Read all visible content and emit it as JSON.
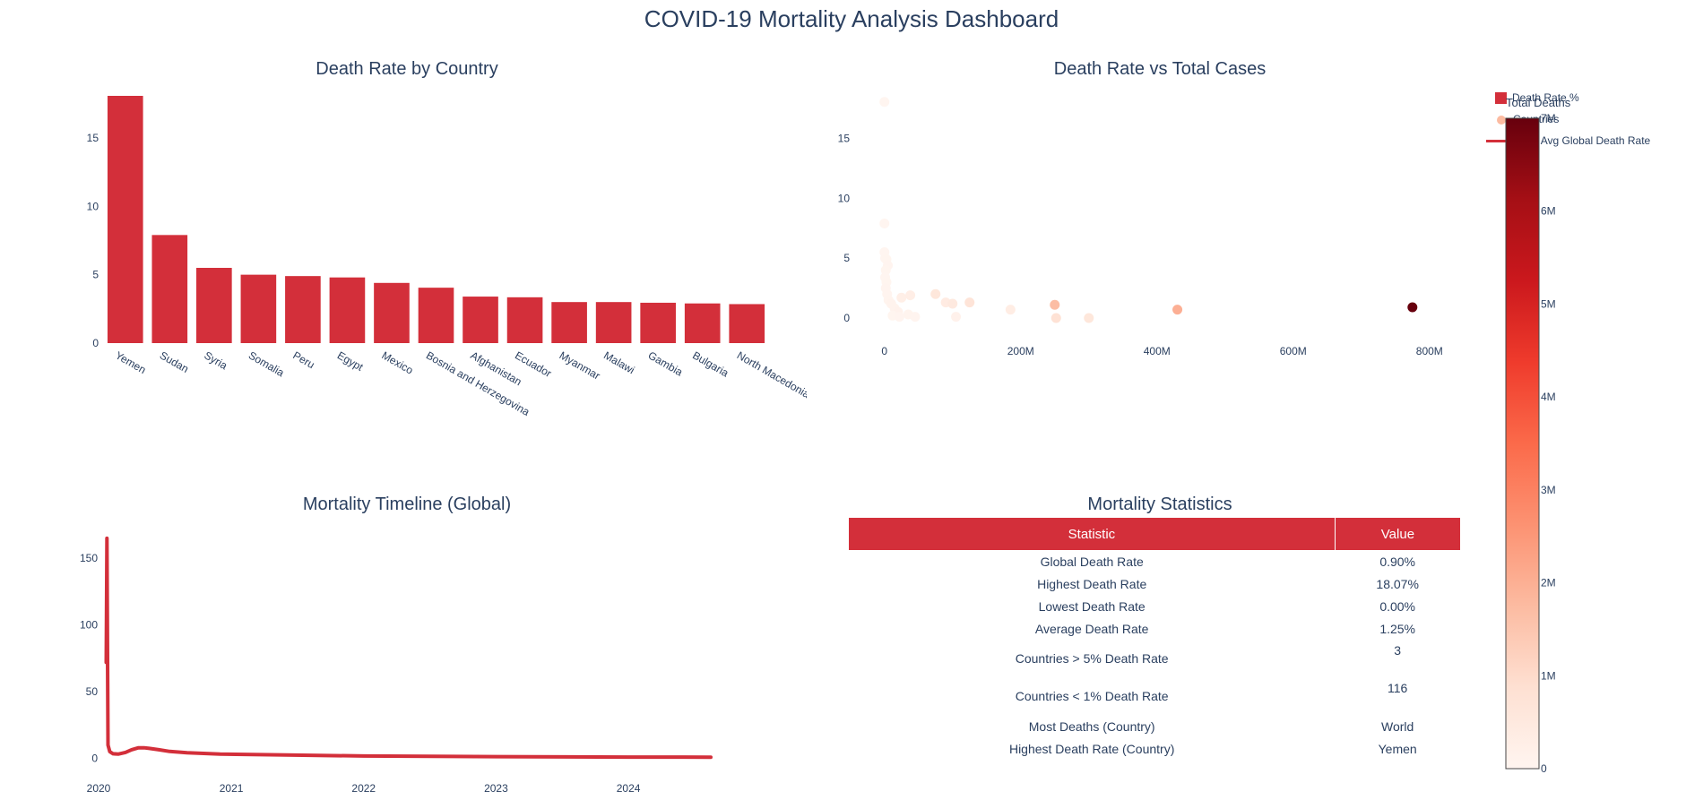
{
  "title": "COVID-19 Mortality Analysis Dashboard",
  "colors": {
    "bar": "#d32f3a",
    "line": "#d32f3a",
    "header": "#d32f3a",
    "colorscale": [
      "#fff5f0",
      "#fee0d2",
      "#fcbba1",
      "#fc9272",
      "#fb6a4a",
      "#ef3b2c",
      "#cb181d",
      "#a50f15",
      "#67000d"
    ]
  },
  "legend": {
    "items": [
      {
        "label": "Death Rate %",
        "symbol": "square"
      },
      {
        "label": "Countries",
        "symbol": "dot"
      },
      {
        "label": "7-day Avg Global Death Rate",
        "symbol": "line"
      }
    ]
  },
  "colorbar": {
    "title": "Total Deaths",
    "range": [
      0,
      7000000
    ],
    "ticks": [
      "0",
      "1M",
      "2M",
      "3M",
      "4M",
      "5M",
      "6M",
      "7M"
    ]
  },
  "chart_data": [
    {
      "type": "bar",
      "title": "Death Rate by Country",
      "categories": [
        "Yemen",
        "Sudan",
        "Syria",
        "Somalia",
        "Peru",
        "Egypt",
        "Mexico",
        "Bosnia and Herzegovina",
        "Afghanistan",
        "Ecuador",
        "Myanmar",
        "Malawi",
        "Gambia",
        "Bulgaria",
        "North Macedonia"
      ],
      "values": [
        18.07,
        7.9,
        5.5,
        5.0,
        4.9,
        4.8,
        4.4,
        4.05,
        3.4,
        3.35,
        3.0,
        3.0,
        2.95,
        2.9,
        2.85
      ],
      "ylim": [
        0,
        18.07
      ],
      "yticks": [
        0,
        5,
        10,
        15
      ],
      "series_name": "Death Rate %"
    },
    {
      "type": "scatter",
      "title": "Death Rate vs Total Cases",
      "series_name": "Countries",
      "xlim": [
        -22000000,
        820000000
      ],
      "ylim": [
        -1.5,
        18.5
      ],
      "xticks": [
        {
          "v": 0,
          "label": "0"
        },
        {
          "v": 200000000,
          "label": "200M"
        },
        {
          "v": 400000000,
          "label": "400M"
        },
        {
          "v": 600000000,
          "label": "600M"
        },
        {
          "v": 800000000,
          "label": "800M"
        }
      ],
      "yticks": [
        0,
        5,
        10,
        15
      ],
      "points": [
        {
          "x": 0,
          "y": 18.07,
          "deaths": 2100
        },
        {
          "x": 0,
          "y": 7.9,
          "deaths": 5000
        },
        {
          "x": 0,
          "y": 5.5,
          "deaths": 3200
        },
        {
          "x": 1000000,
          "y": 5.0,
          "deaths": 1400
        },
        {
          "x": 3000000,
          "y": 4.9,
          "deaths": 15000
        },
        {
          "x": 5000000,
          "y": 4.4,
          "deaths": 25000
        },
        {
          "x": 2000000,
          "y": 4.0,
          "deaths": 16000
        },
        {
          "x": 1000000,
          "y": 3.4,
          "deaths": 8000
        },
        {
          "x": 3000000,
          "y": 3.0,
          "deaths": 19000
        },
        {
          "x": 2000000,
          "y": 2.5,
          "deaths": 25000
        },
        {
          "x": 4000000,
          "y": 2.0,
          "deaths": 35000
        },
        {
          "x": 6000000,
          "y": 1.5,
          "deaths": 60000
        },
        {
          "x": 10000000,
          "y": 1.2,
          "deaths": 80000
        },
        {
          "x": 15000000,
          "y": 0.8,
          "deaths": 100000
        },
        {
          "x": 20000000,
          "y": 0.5,
          "deaths": 120000
        },
        {
          "x": 12000000,
          "y": 0.2,
          "deaths": 20000
        },
        {
          "x": 25000000,
          "y": 1.7,
          "deaths": 250000
        },
        {
          "x": 35000000,
          "y": 0.3,
          "deaths": 60000
        },
        {
          "x": 38000000,
          "y": 1.9,
          "deaths": 300000
        },
        {
          "x": 45000000,
          "y": 0.1,
          "deaths": 40000
        },
        {
          "x": 22000000,
          "y": 0.1,
          "deaths": 30000
        },
        {
          "x": 75000000,
          "y": 2.0,
          "deaths": 600000
        },
        {
          "x": 90000000,
          "y": 1.3,
          "deaths": 400000
        },
        {
          "x": 100000000,
          "y": 1.2,
          "deaths": 500000
        },
        {
          "x": 105000000,
          "y": 0.1,
          "deaths": 150000
        },
        {
          "x": 125000000,
          "y": 1.3,
          "deaths": 700000
        },
        {
          "x": 185000000,
          "y": 0.7,
          "deaths": 350000
        },
        {
          "x": 250000000,
          "y": 1.1,
          "deaths": 1700000
        },
        {
          "x": 252000000,
          "y": 0.0,
          "deaths": 800000
        },
        {
          "x": 300000000,
          "y": 0.0,
          "deaths": 600000
        },
        {
          "x": 430000000,
          "y": 0.7,
          "deaths": 2000000
        },
        {
          "x": 775000000,
          "y": 0.9,
          "deaths": 7000000
        }
      ]
    },
    {
      "type": "line",
      "title": "Mortality Timeline (Global)",
      "series_name": "7-day Avg Global Death Rate",
      "x": [
        "2020-01-22",
        "2020-01-24",
        "2020-01-27",
        "2020-02-01",
        "2020-02-10",
        "2020-02-25",
        "2020-03-15",
        "2020-04-01",
        "2020-04-20",
        "2020-05-05",
        "2020-05-20",
        "2020-06-15",
        "2020-07-15",
        "2020-09-01",
        "2020-12-01",
        "2021-06-01",
        "2022-01-01",
        "2023-01-01",
        "2024-01-01",
        "2024-08-15"
      ],
      "y": [
        72,
        165,
        10,
        5,
        3.5,
        3.3,
        4.5,
        6.5,
        8,
        8,
        7.5,
        6.5,
        5.2,
        4.2,
        3.3,
        2.6,
        1.8,
        1.3,
        1.0,
        0.9
      ],
      "xlim": [
        "2020-01-01",
        "2024-08-25"
      ],
      "ylim": [
        -7,
        175
      ],
      "xticks": [
        "2020",
        "2021",
        "2022",
        "2023",
        "2024"
      ],
      "yticks": [
        0,
        50,
        100,
        150
      ]
    }
  ],
  "table": {
    "title": "Mortality Statistics",
    "headers": [
      "Statistic",
      "Value"
    ],
    "rows": [
      {
        "label": "Global Death Rate",
        "value": "0.90%"
      },
      {
        "label": "Highest Death Rate",
        "value": "18.07%"
      },
      {
        "label": "Lowest Death Rate",
        "value": "0.00%"
      },
      {
        "label": "Average Death Rate",
        "value": "1.25%"
      },
      {
        "label": "Countries > 5% Death Rate",
        "value": "3"
      },
      {
        "label": "Countries < 1% Death Rate",
        "value": "116"
      },
      {
        "label": "Most Deaths (Country)",
        "value": "World"
      },
      {
        "label": "Highest Death Rate (Country)",
        "value": "Yemen"
      }
    ]
  }
}
